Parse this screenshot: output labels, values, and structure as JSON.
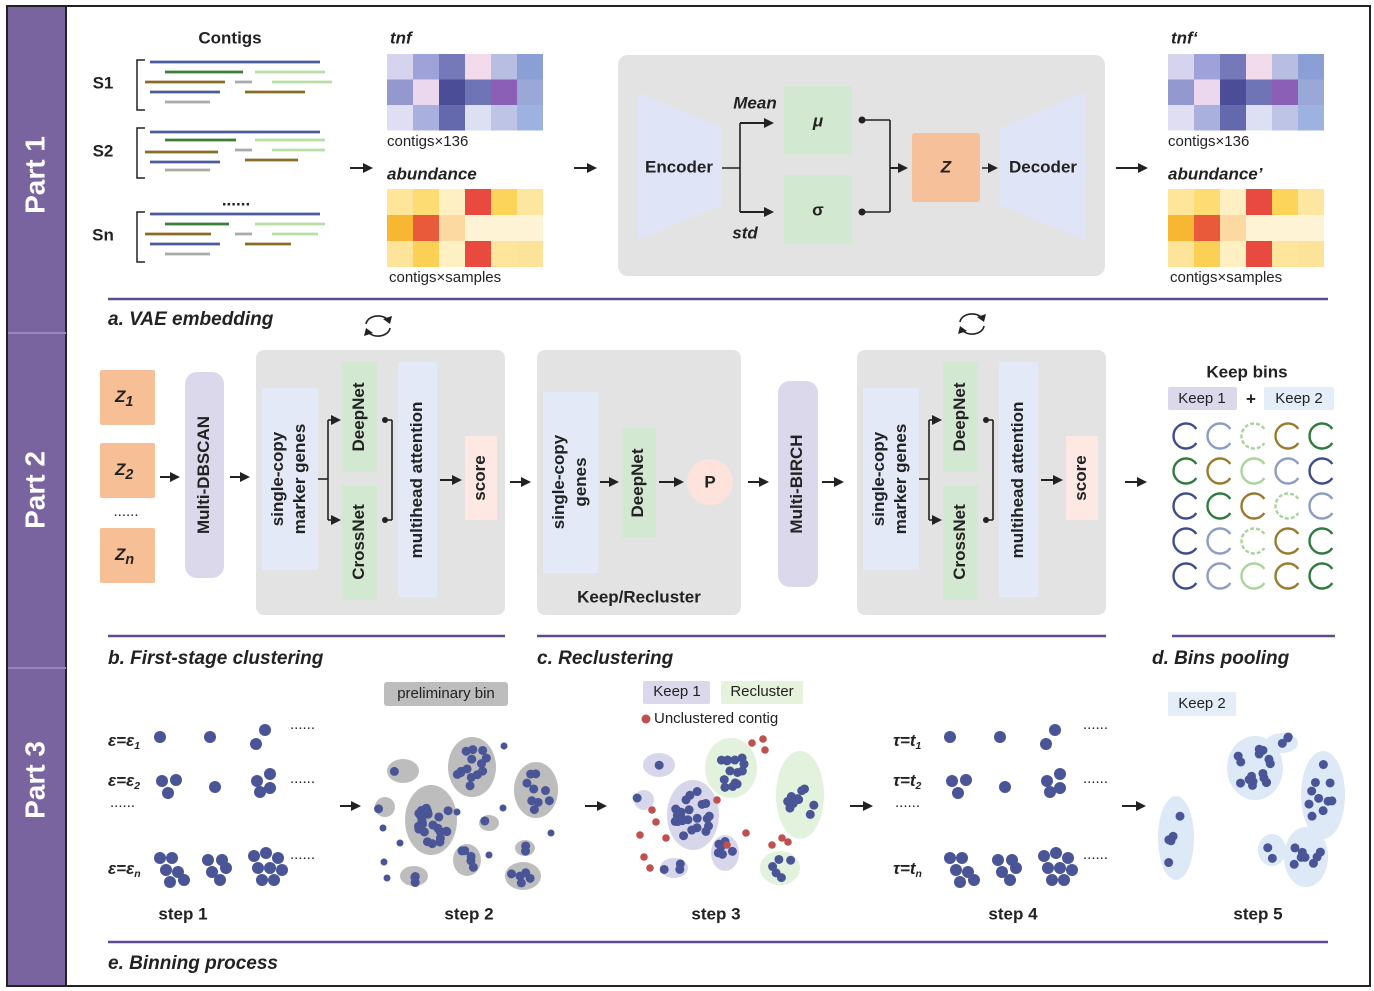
{
  "sidebar": {
    "parts": [
      "Part 1",
      "Part 2",
      "Part 3"
    ]
  },
  "vae": {
    "contigs": "Contigs",
    "samples": [
      "S1",
      "S2",
      "Sn"
    ],
    "ellipsis": "......",
    "tnf": "tnf",
    "tnf_shape": "contigs×136",
    "abundance": "abundance",
    "abundance_shape": "contigs×samples",
    "encoder": "Encoder",
    "mean": "Mean",
    "std": "std",
    "mu": "μ",
    "sigma": "σ",
    "z": "Z",
    "decoder": "Decoder",
    "tnf_out": "tnf‘",
    "tnf_out_shape": "contigs×136",
    "abundance_out": "abundance’",
    "abundance_out_shape": "contigs×samples",
    "caption": "a. VAE embedding"
  },
  "clustering": {
    "z_inputs": [
      {
        "base": "Z",
        "sub": "1"
      },
      {
        "base": "Z",
        "sub": "2"
      },
      {
        "base": "Z",
        "sub": "n"
      }
    ],
    "ellipsis": "......",
    "dbscan": "Multi-DBSCAN",
    "marker_genes": [
      "single-copy",
      "marker genes"
    ],
    "deepnet": "DeepNet",
    "crossnet": "CrossNet",
    "attention": "multihead attention",
    "score": "score",
    "caption": "b. First-stage clustering"
  },
  "reclustering": {
    "genes": [
      "single-copy",
      "genes"
    ],
    "deepnet": "DeepNet",
    "p": "P",
    "decision": "Keep/Recluster",
    "birch": "Multi-BIRCH",
    "marker_genes": [
      "single-copy",
      "marker genes"
    ],
    "deepnet2": "DeepNet",
    "crossnet": "CrossNet",
    "attention": "multihead attention",
    "score": "score",
    "caption": "c. Reclustering"
  },
  "pooling": {
    "title": "Keep bins",
    "keep1": "Keep 1",
    "plus": "+",
    "keep2": "Keep 2",
    "caption": "d. Bins pooling"
  },
  "binning": {
    "eps": [
      {
        "lhs": "ε=ε",
        "sub": "1"
      },
      {
        "lhs": "ε=ε",
        "sub": "2"
      },
      {
        "lhs": "ε=ε",
        "sub": "n"
      }
    ],
    "eps_ellipsis": "......",
    "eps_more": [
      "......",
      "......",
      "......"
    ],
    "preliminary": "preliminary bin",
    "keep1": "Keep 1",
    "recluster": "Recluster",
    "unclustered": "Unclustered contig",
    "tau": [
      {
        "lhs": "τ=t",
        "sub": "1"
      },
      {
        "lhs": "τ=t",
        "sub": "2"
      },
      {
        "lhs": "τ=t",
        "sub": "n"
      }
    ],
    "tau_ellipsis": "......",
    "tau_more": [
      "......",
      "......",
      "......"
    ],
    "keep2": "Keep 2",
    "steps": [
      "step 1",
      "step 2",
      "step 3",
      "step 4",
      "step 5"
    ],
    "caption": "e. Binning process"
  }
}
